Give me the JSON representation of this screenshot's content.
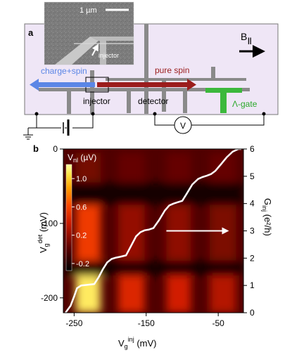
{
  "panel_a": {
    "label": "a",
    "scale_bar_text": "1 µm",
    "sem_injector_label": "injector",
    "field_label": "B",
    "field_subscript": "||",
    "charge_spin_label": "charge+spin",
    "pure_spin_label": "pure spin",
    "injector_label": "injector",
    "detector_label": "detector",
    "gate_label": "Λ-gate",
    "voltmeter_label": "V",
    "colors": {
      "background": "#efe6f6",
      "wire": "#8a8a8a",
      "charge_arrow": "#5b86e6",
      "spin_arrow": "#9b1c1c",
      "gate": "#3cb83c"
    }
  },
  "panel_b": {
    "label": "b",
    "colorbar": {
      "title": "V",
      "title_sub": "nl",
      "title_unit": " (µV)",
      "tick_labels": [
        "1.0",
        "0.6",
        "0.2",
        "-0.2"
      ],
      "tick_values": [
        1.0,
        0.6,
        0.2,
        -0.2
      ]
    },
    "xlabel_main": "V",
    "xlabel_sub": "g",
    "xlabel_sup": "inj",
    "xlabel_unit": " (mV)",
    "ylabel_left_main": "V",
    "ylabel_left_sub": "g",
    "ylabel_left_sup": "det",
    "ylabel_left_unit": " (mV)",
    "ylabel_right_main": "G",
    "ylabel_right_sub": "inj",
    "ylabel_right_unit": " (e²/h)",
    "x_ticks": [
      "-250",
      "-150",
      "-50"
    ],
    "y_ticks_left": [
      "0",
      "-100",
      "-200"
    ],
    "y_ticks_right": [
      "0",
      "1",
      "2",
      "3",
      "4",
      "5",
      "6"
    ]
  },
  "chart_data": {
    "type": "heatmap",
    "xlim": [
      -265,
      -15
    ],
    "ylim_left": [
      -220,
      0
    ],
    "ylim_right": [
      0,
      6
    ],
    "x_ticks": [
      -250,
      -150,
      -50
    ],
    "y_ticks_left": [
      0,
      -100,
      -200
    ],
    "y_ticks_right": [
      0,
      1,
      2,
      3,
      4,
      5,
      6
    ],
    "colorbar_range": [
      -0.3,
      1.2
    ],
    "blocks": [
      {
        "x": [
          -248,
          -213
        ],
        "y": [
          -220,
          -170
        ],
        "value": 1.1
      },
      {
        "x": [
          -189,
          -152
        ],
        "y": [
          -220,
          -170
        ],
        "value": 0.45
      },
      {
        "x": [
          -122,
          -88
        ],
        "y": [
          -220,
          -170
        ],
        "value": 0.4
      },
      {
        "x": [
          -62,
          -25
        ],
        "y": [
          -220,
          -170
        ],
        "value": 0.3
      },
      {
        "x": [
          -248,
          -213
        ],
        "y": [
          -150,
          -75
        ],
        "value": 0.55
      },
      {
        "x": [
          -189,
          -152
        ],
        "y": [
          -150,
          -75
        ],
        "value": 0.2
      },
      {
        "x": [
          -122,
          -88
        ],
        "y": [
          -150,
          -75
        ],
        "value": 0.18
      },
      {
        "x": [
          -62,
          -25
        ],
        "y": [
          -150,
          -75
        ],
        "value": 0.12
      },
      {
        "x": [
          -248,
          -213
        ],
        "y": [
          -45,
          -5
        ],
        "value": 0.1
      },
      {
        "x": [
          -189,
          -152
        ],
        "y": [
          -45,
          -5
        ],
        "value": 0.05
      },
      {
        "x": [
          -122,
          -88
        ],
        "y": [
          -45,
          -5
        ],
        "value": 0.05
      },
      {
        "x": [
          -62,
          -25
        ],
        "y": [
          -45,
          -5
        ],
        "value": 0.05
      }
    ],
    "conductance_curve": {
      "name": "G_inj",
      "x": [
        -262,
        -255,
        -250,
        -246,
        -240,
        -232,
        -222,
        -216,
        -210,
        -204,
        -198,
        -192,
        -186,
        -178,
        -170,
        -164,
        -158,
        -152,
        -146,
        -140,
        -132,
        -124,
        -118,
        -112,
        -106,
        -100,
        -94,
        -86,
        -78,
        -72,
        -66,
        -60,
        -54,
        -46,
        -38,
        -30,
        -22,
        -18
      ],
      "y": [
        0.0,
        0.25,
        0.6,
        0.9,
        1.0,
        1.02,
        1.05,
        1.3,
        1.6,
        1.85,
        1.97,
        2.02,
        2.05,
        2.1,
        2.5,
        2.8,
        2.95,
        3.02,
        3.05,
        3.1,
        3.4,
        3.75,
        3.93,
        4.0,
        4.05,
        4.1,
        4.35,
        4.7,
        4.9,
        4.97,
        5.02,
        5.08,
        5.2,
        5.45,
        5.7,
        5.9,
        6.0,
        6.0
      ]
    },
    "annotation_arrow": {
      "from": [
        -122,
        3.0
      ],
      "to": [
        -37,
        3.0
      ]
    }
  }
}
